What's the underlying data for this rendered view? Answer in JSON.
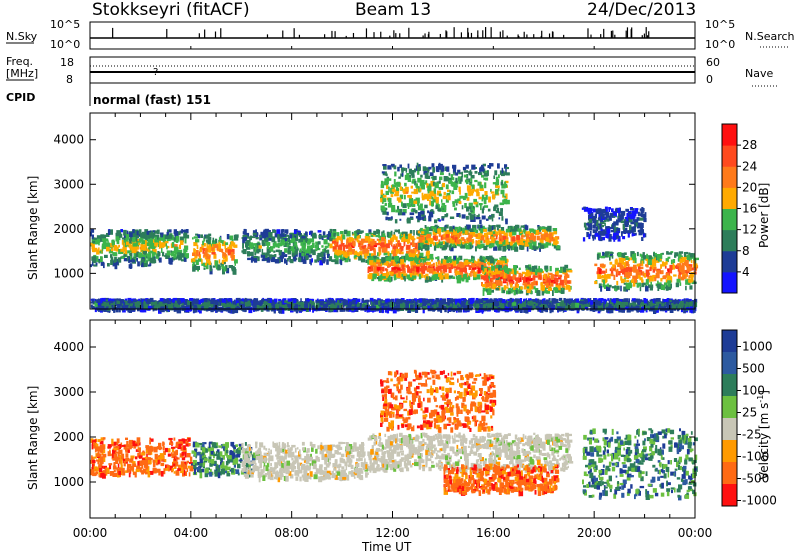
{
  "header": {
    "station": "Stokkseyri (fitACF)",
    "beam": "Beam 13",
    "date": "24/Dec/2013"
  },
  "top_panel": {
    "nsky_label": "N.Sky",
    "nsearch_label": "N.Search",
    "noise_top_tick_left": "10^5",
    "noise_bottom_tick_left": "10^0",
    "noise_top_tick_right": "10^5",
    "noise_bottom_tick_right": "10^0",
    "freq_label_line1": "Freq.",
    "freq_label_line2": "[MHz]",
    "freq_tick_top": "18",
    "freq_tick_bottom": "8",
    "nave_label": "Nave",
    "nave_tick_top": "60",
    "nave_tick_bottom": "0",
    "cpid_label": "CPID",
    "cpid_value": "normal (fast) 151"
  },
  "colors": {
    "power": [
      "#1414ff",
      "#1e3c96",
      "#2d7d5a",
      "#3cb44b",
      "#ffaa00",
      "#ff7a1a",
      "#ff4a1e",
      "#ff1010"
    ],
    "velocity": [
      "#1e3c96",
      "#2d5aa0",
      "#2d7d5a",
      "#6cc040",
      "#c8c6b6",
      "#ff9a00",
      "#ff6a14",
      "#ff1010"
    ]
  },
  "chart_data": [
    {
      "type": "heatmap",
      "title": "",
      "xlabel": "Time UT",
      "ylabel": "Slant Range [km]",
      "xticks": [
        "00:00",
        "04:00",
        "08:00",
        "12:00",
        "16:00",
        "20:00",
        "00:00"
      ],
      "x_range_hours": [
        0,
        24
      ],
      "yticks": [
        "1000",
        "2000",
        "3000",
        "4000"
      ],
      "ylim": [
        200,
        4600
      ],
      "colorbar": {
        "label": "Power [dB]",
        "ticks": [
          "4",
          "8",
          "12",
          "16",
          "20",
          "24",
          "28"
        ],
        "range": [
          0,
          32
        ]
      },
      "echo_bands": [
        {
          "start_hr": 0.0,
          "end_hr": 2.5,
          "low_km": 1200,
          "high_km": 2000,
          "peak": 18
        },
        {
          "start_hr": 1.3,
          "end_hr": 3.8,
          "low_km": 1300,
          "high_km": 2000,
          "peak": 18
        },
        {
          "start_hr": 4.0,
          "end_hr": 5.8,
          "low_km": 1100,
          "high_km": 1900,
          "peak": 24
        },
        {
          "start_hr": 6.0,
          "end_hr": 9.5,
          "low_km": 1300,
          "high_km": 2000,
          "peak": 14
        },
        {
          "start_hr": 9.5,
          "end_hr": 13.5,
          "low_km": 1300,
          "high_km": 2000,
          "peak": 26
        },
        {
          "start_hr": 11.0,
          "end_hr": 16.5,
          "low_km": 900,
          "high_km": 1400,
          "peak": 28
        },
        {
          "start_hr": 13.0,
          "end_hr": 18.5,
          "low_km": 1600,
          "high_km": 2100,
          "peak": 24
        },
        {
          "start_hr": 15.5,
          "end_hr": 19.0,
          "low_km": 600,
          "high_km": 1200,
          "peak": 28
        },
        {
          "start_hr": 20.0,
          "end_hr": 24.0,
          "low_km": 700,
          "high_km": 1500,
          "peak": 26
        },
        {
          "start_hr": 11.5,
          "end_hr": 16.5,
          "low_km": 2200,
          "high_km": 3500,
          "peak": 18
        },
        {
          "start_hr": 19.5,
          "end_hr": 22.0,
          "low_km": 1800,
          "high_km": 2500,
          "peak": 8
        },
        {
          "start_hr": 0.0,
          "end_hr": 24.0,
          "low_km": 220,
          "high_km": 450,
          "peak": 10
        }
      ]
    },
    {
      "type": "heatmap",
      "title": "",
      "xlabel": "Time UT",
      "ylabel": "Slant Range [km]",
      "xticks": [
        "00:00",
        "04:00",
        "08:00",
        "12:00",
        "16:00",
        "20:00",
        "00:00"
      ],
      "x_range_hours": [
        0,
        24
      ],
      "yticks": [
        "1000",
        "2000",
        "3000",
        "4000"
      ],
      "ylim": [
        200,
        4600
      ],
      "colorbar": {
        "label": "Velocity [m s^-1]",
        "ticks": [
          "1000",
          "500",
          "100",
          "25",
          "-25",
          "-100",
          "-500",
          "-1000"
        ]
      },
      "echo_bands": [
        {
          "start_hr": 0.0,
          "end_hr": 4.0,
          "low_km": 1200,
          "high_km": 2000,
          "velocity": "-100 to -500"
        },
        {
          "start_hr": 4.0,
          "end_hr": 6.5,
          "low_km": 1200,
          "high_km": 1900,
          "velocity": "25 to 500"
        },
        {
          "start_hr": 6.0,
          "end_hr": 11.0,
          "low_km": 1100,
          "high_km": 1900,
          "velocity": "-25 to 25"
        },
        {
          "start_hr": 11.0,
          "end_hr": 19.0,
          "low_km": 1300,
          "high_km": 2100,
          "velocity": "-25 to 25"
        },
        {
          "start_hr": 14.0,
          "end_hr": 18.5,
          "low_km": 800,
          "high_km": 1400,
          "velocity": "-100 to -500"
        },
        {
          "start_hr": 11.5,
          "end_hr": 16.0,
          "low_km": 2200,
          "high_km": 3500,
          "velocity": "-100 to -500"
        },
        {
          "start_hr": 19.5,
          "end_hr": 24.0,
          "low_km": 700,
          "high_km": 2200,
          "velocity": "100 to 1000"
        }
      ]
    }
  ]
}
